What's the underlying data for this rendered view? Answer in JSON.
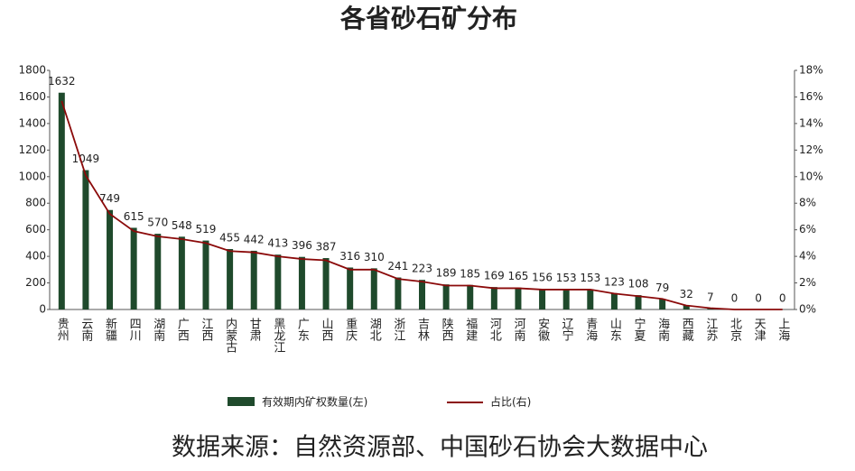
{
  "chart_data": {
    "type": "bar",
    "title": "各省砂石矿分布",
    "source": "数据来源：自然资源部、中国砂石协会大数据中心",
    "categories": [
      "贵州",
      "云南",
      "新疆",
      "四川",
      "湖南",
      "广西",
      "江西",
      "内蒙古",
      "甘肃",
      "黑龙江",
      "广东",
      "山西",
      "重庆",
      "湖北",
      "浙江",
      "吉林",
      "陕西",
      "福建",
      "河北",
      "河南",
      "安徽",
      "辽宁",
      "青海",
      "山东",
      "宁夏",
      "海南",
      "西藏",
      "江苏",
      "北京",
      "天津",
      "上海"
    ],
    "series": [
      {
        "name": "有效期内矿权数量(左)",
        "type": "bar",
        "color": "#1f4a2c",
        "values": [
          1632,
          1049,
          749,
          615,
          570,
          548,
          519,
          455,
          442,
          413,
          396,
          387,
          316,
          310,
          241,
          223,
          189,
          185,
          169,
          165,
          156,
          153,
          153,
          123,
          108,
          79,
          32,
          7,
          0,
          0,
          0
        ]
      },
      {
        "name": "占比(右)",
        "type": "line",
        "axis": "y2",
        "color": "#8b0a0a",
        "values": [
          15.7,
          10.1,
          7.2,
          5.9,
          5.5,
          5.3,
          5.0,
          4.4,
          4.3,
          4.0,
          3.8,
          3.7,
          3.0,
          3.0,
          2.3,
          2.1,
          1.8,
          1.8,
          1.6,
          1.6,
          1.5,
          1.5,
          1.5,
          1.2,
          1.0,
          0.8,
          0.3,
          0.1,
          0,
          0,
          0
        ]
      }
    ],
    "ylim": [
      0,
      1800
    ],
    "yticks": [
      0,
      200,
      400,
      600,
      800,
      1000,
      1200,
      1400,
      1600,
      1800
    ],
    "y2lim": [
      0,
      18
    ],
    "y2ticks": [
      {
        "value": 0,
        "label": "0%"
      },
      {
        "value": 2,
        "label": "2%"
      },
      {
        "value": 4,
        "label": "4%"
      },
      {
        "value": 6,
        "label": "6%"
      },
      {
        "value": 8,
        "label": "8%"
      },
      {
        "value": 10,
        "label": "10%"
      },
      {
        "value": 12,
        "label": "12%"
      },
      {
        "value": 14,
        "label": "14%"
      },
      {
        "value": 16,
        "label": "16%"
      },
      {
        "value": 18,
        "label": "18%"
      }
    ],
    "data_labels": true
  }
}
